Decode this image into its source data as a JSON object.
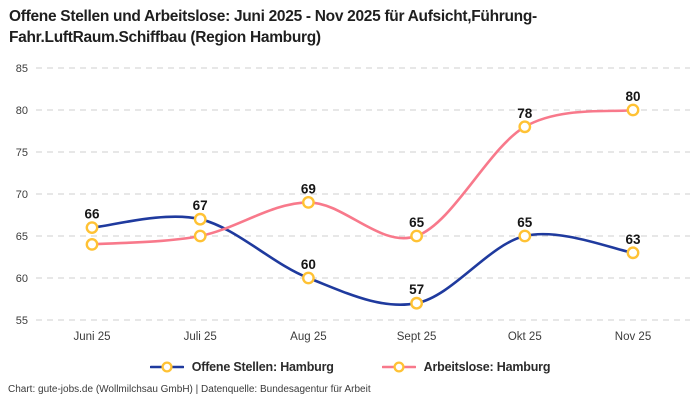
{
  "title": {
    "line1": "Offene Stellen und Arbeitslose: Juni 2025 - Nov 2025 für Aufsicht,Führung-",
    "line2": "Fahr.LuftRaum.Schiffbau (Region Hamburg)"
  },
  "footer": {
    "text": "Chart: gute-jobs.de (Wollmilchsau GmbH) | Datenquelle: Bundesagentur für Arbeit"
  },
  "chart_data": {
    "type": "line",
    "title": "Offene Stellen und Arbeitslose: Juni 2025 - Nov 2025 für Aufsicht,Führung-Fahr.LuftRaum.Schiffbau (Region Hamburg)",
    "categories": [
      "Juni 25",
      "Juli 25",
      "Aug 25",
      "Sept 25",
      "Okt 25",
      "Nov 25"
    ],
    "ylim": [
      55,
      85
    ],
    "yticks": [
      55,
      60,
      65,
      70,
      75,
      80,
      85
    ],
    "grid": "horizontal-dashed",
    "legend_position": "bottom-center",
    "marker": {
      "shape": "circle",
      "fill": "#ffffff",
      "stroke": "#ffc234"
    },
    "series": [
      {
        "name": "Offene Stellen: Hamburg",
        "color": "#1f3a9e",
        "values": [
          66,
          67,
          60,
          57,
          65,
          63
        ],
        "point_labels": [
          "66",
          "67",
          "60",
          "57",
          "65",
          "63"
        ]
      },
      {
        "name": "Arbeitslose: Hamburg",
        "color": "#f8798b",
        "values": [
          64,
          65,
          69,
          65,
          78,
          80
        ],
        "point_labels": [
          "",
          "",
          "69",
          "65",
          "78",
          "80"
        ]
      }
    ]
  },
  "colors": {
    "background": "#ffffff",
    "grid": "#cfcfcf",
    "title": "#1f1f1f",
    "tick": "#3c3c3c",
    "data_label": "#161616",
    "footer": "#3a3a3a"
  }
}
